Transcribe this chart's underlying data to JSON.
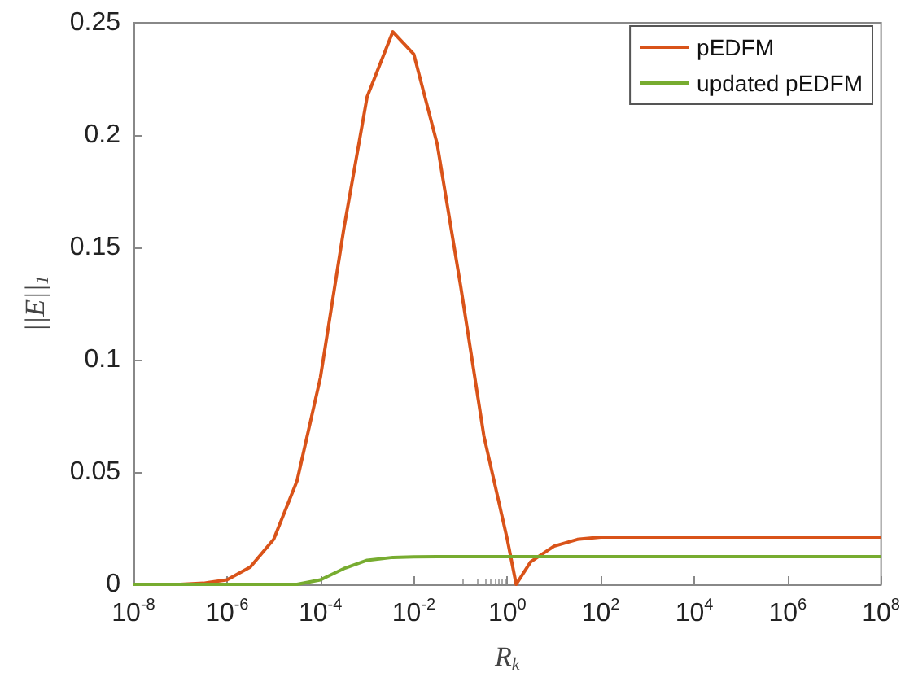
{
  "chart_data": {
    "type": "line",
    "xlabel": "R$_{k}$",
    "ylabel": "||E||$_{1}$",
    "log": "x",
    "x": [
      1e-08,
      1e-07,
      3.16e-07,
      1e-06,
      3.16e-06,
      1e-05,
      3.16e-05,
      0.0001,
      0.000316,
      0.001,
      0.00355,
      0.01,
      0.0316,
      0.1,
      0.316,
      1,
      1.55,
      3.16,
      10,
      31.6,
      100,
      1000.0,
      100000.0,
      100000000.0
    ],
    "series": [
      {
        "name": "pEDFM",
        "color": "#d95319",
        "values": [
          0,
          0,
          0.0005,
          0.002,
          0.0077,
          0.02,
          0.046,
          0.092,
          0.158,
          0.217,
          0.246,
          0.236,
          0.196,
          0.133,
          0.066,
          0.02,
          0,
          0.01,
          0.017,
          0.02,
          0.021,
          0.021,
          0.021,
          0.021
        ]
      },
      {
        "name": "updated pEDFM",
        "color": "#77ac30",
        "values": [
          0,
          0,
          0,
          0,
          0,
          0,
          0,
          0.002,
          0.007,
          0.0107,
          0.012,
          0.0122,
          0.0123,
          0.0123,
          0.0123,
          0.0123,
          0.0123,
          0.0123,
          0.0123,
          0.0123,
          0.0123,
          0.0123,
          0.0123,
          0.0123
        ]
      }
    ],
    "xlim": [
      1e-08,
      100000000.0
    ],
    "xticks": [
      {
        "value": 1e-08,
        "label": "10$^{-8}$"
      },
      {
        "value": 1e-06,
        "label": "10$^{-6}$"
      },
      {
        "value": 0.0001,
        "label": "10$^{-4}$"
      },
      {
        "value": 0.01,
        "label": "10$^{-2}$"
      },
      {
        "value": 1,
        "label": "10$^{0}$"
      },
      {
        "value": 100,
        "label": "10$^{2}$"
      },
      {
        "value": 10000.0,
        "label": "10$^{4}$"
      },
      {
        "value": 1000000.0,
        "label": "10$^{6}$"
      },
      {
        "value": 100000000.0,
        "label": "10$^{8}$"
      }
    ],
    "ylim": [
      0,
      0.25
    ],
    "yticks": [
      0,
      0.05,
      0.1,
      0.15,
      0.2,
      0.25
    ],
    "grid": false,
    "legend": "top right",
    "marker": "none",
    "line_style": "solid"
  }
}
